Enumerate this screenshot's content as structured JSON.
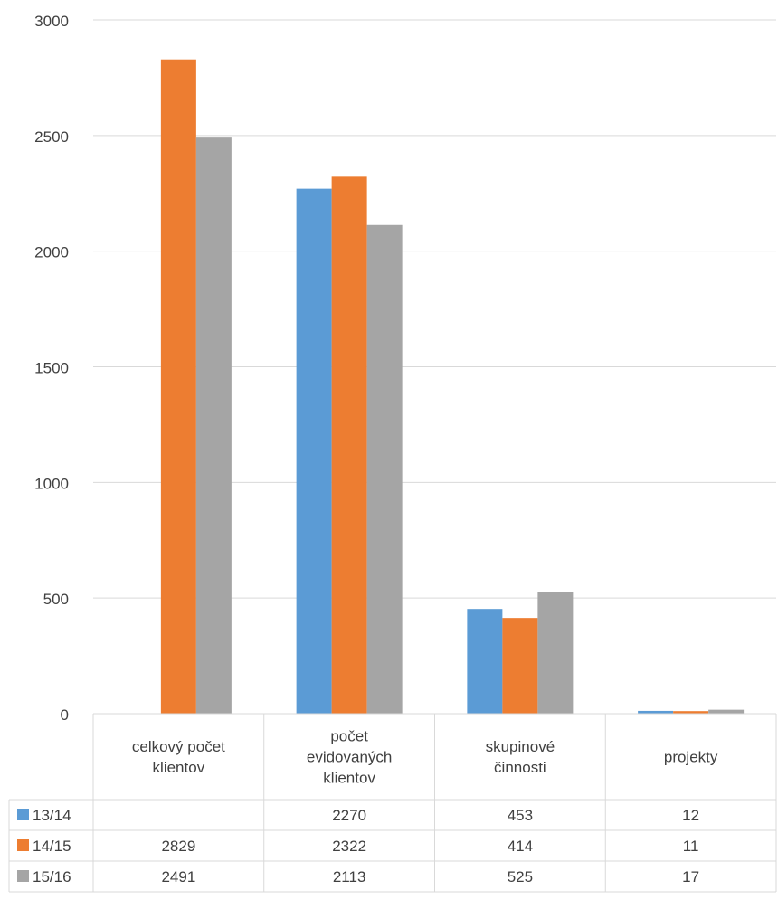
{
  "chart_data": {
    "type": "bar",
    "title": "",
    "xlabel": "",
    "ylabel": "",
    "ylim": [
      0,
      3000
    ],
    "yticks": [
      0,
      500,
      1000,
      1500,
      2000,
      2500,
      3000
    ],
    "grid": true,
    "legend_placement": "data-table-left",
    "categories": [
      [
        "celkový počet",
        "klientov"
      ],
      [
        "počet",
        "evidovaných",
        "klientov"
      ],
      [
        "skupinové",
        "činnosti"
      ],
      [
        "projekty"
      ]
    ],
    "series": [
      {
        "name": "13/14",
        "color": "#5b9bd5",
        "values": [
          null,
          2270,
          453,
          12
        ]
      },
      {
        "name": "14/15",
        "color": "#ed7d31",
        "values": [
          2829,
          2322,
          414,
          11
        ]
      },
      {
        "name": "15/16",
        "color": "#a5a5a5",
        "values": [
          2491,
          2113,
          525,
          17
        ]
      }
    ]
  }
}
